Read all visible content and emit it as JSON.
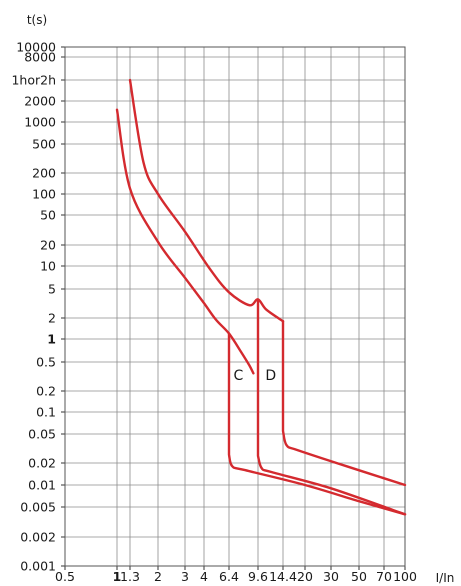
{
  "chart_data": {
    "type": "line",
    "title": "",
    "ylabel": "t(s)",
    "xlabel": "I/In",
    "x_scale": "log",
    "y_scale": "log",
    "xlim": [
      0.5,
      100
    ],
    "ylim": [
      0.001,
      10000
    ],
    "grid": true,
    "legend": "none",
    "x_ticks": [
      {
        "value": 0.5,
        "label": "0.5",
        "bold": false
      },
      {
        "value": 1,
        "label": "1",
        "bold": true
      },
      {
        "value": 1.3,
        "label": "1.3",
        "bold": false
      },
      {
        "value": 2,
        "label": "2",
        "bold": false
      },
      {
        "value": 3,
        "label": "3",
        "bold": false
      },
      {
        "value": 4,
        "label": "4",
        "bold": false
      },
      {
        "value": 6.4,
        "label": "6.4",
        "bold": false
      },
      {
        "value": 9.6,
        "label": "9.6",
        "bold": false
      },
      {
        "value": 14.4,
        "label": "14.4",
        "bold": false
      },
      {
        "value": 20,
        "label": "20",
        "bold": false
      },
      {
        "value": 30,
        "label": "30",
        "bold": false
      },
      {
        "value": 50,
        "label": "50",
        "bold": false
      },
      {
        "value": 70,
        "label": "70",
        "bold": false
      },
      {
        "value": 100,
        "label": "100",
        "bold": false
      }
    ],
    "y_ticks": [
      {
        "value": 10000,
        "label": "10000",
        "bold": false
      },
      {
        "value": 8000,
        "label": "8000",
        "bold": false
      },
      {
        "value": 3600,
        "label": "1hor2h",
        "bold": false
      },
      {
        "value": 2000,
        "label": "2000",
        "bold": false
      },
      {
        "value": 1000,
        "label": "1000",
        "bold": false
      },
      {
        "value": 500,
        "label": "500",
        "bold": false
      },
      {
        "value": 200,
        "label": "200",
        "bold": false
      },
      {
        "value": 100,
        "label": "100",
        "bold": false
      },
      {
        "value": 50,
        "label": "50",
        "bold": false
      },
      {
        "value": 20,
        "label": "20",
        "bold": false
      },
      {
        "value": 10,
        "label": "10",
        "bold": false
      },
      {
        "value": 5,
        "label": "5",
        "bold": false
      },
      {
        "value": 2,
        "label": "2",
        "bold": false
      },
      {
        "value": 1,
        "label": "1",
        "bold": true
      },
      {
        "value": 0.5,
        "label": "0.5",
        "bold": false
      },
      {
        "value": 0.2,
        "label": "0.2",
        "bold": false
      },
      {
        "value": 0.1,
        "label": "0.1",
        "bold": false
      },
      {
        "value": 0.05,
        "label": "0.05",
        "bold": false
      },
      {
        "value": 0.02,
        "label": "0.02",
        "bold": false
      },
      {
        "value": 0.01,
        "label": "0.01",
        "bold": false
      },
      {
        "value": 0.005,
        "label": "0.005",
        "bold": false
      },
      {
        "value": 0.002,
        "label": "0.002",
        "bold": false
      },
      {
        "value": 0.001,
        "label": "0.001",
        "bold": false
      }
    ],
    "curve_color": "#d42a2f",
    "series": [
      {
        "label": "C",
        "label_x": 7.3,
        "label_y": 0.33,
        "segments": [
          {
            "kind": "thermal_min",
            "x": [
              1.0,
              1.3,
              2.0,
              3.0,
              4.0,
              5.0,
              6.4,
              7.5,
              8.5,
              9.0
            ],
            "y": [
              1500,
              120,
              22,
              7,
              3.2,
              1.9,
              1.2,
              0.7,
              0.45,
              0.35
            ]
          },
          {
            "kind": "magnetic_min",
            "x": [
              6.4,
              6.4,
              6.7,
              8.0,
              20,
              50,
              100
            ],
            "y": [
              1.2,
              0.026,
              0.018,
              0.016,
              0.01,
              0.006,
              0.004
            ]
          }
        ]
      },
      {
        "label": "D",
        "label_x": 11.8,
        "label_y": 0.33,
        "segments": [
          {
            "kind": "thermal_max",
            "x": [
              1.3,
              1.6,
              2.0,
              3.0,
              4.5,
              6.4,
              8.5,
              9.6,
              11.0,
              14.4
            ],
            "y": [
              3600,
              280,
              100,
              30,
              9,
              4.5,
              3.0,
              3.6,
              2.6,
              1.8
            ]
          },
          {
            "kind": "magnetic_min",
            "x": [
              9.6,
              9.6,
              10.2,
              12.0,
              30,
              100
            ],
            "y": [
              3.6,
              0.025,
              0.017,
              0.015,
              0.009,
              0.004
            ]
          },
          {
            "kind": "magnetic_max",
            "x": [
              14.4,
              14.4,
              15.2,
              18.0,
              40,
              100
            ],
            "y": [
              1.8,
              0.055,
              0.035,
              0.03,
              0.018,
              0.01
            ]
          }
        ]
      }
    ]
  }
}
